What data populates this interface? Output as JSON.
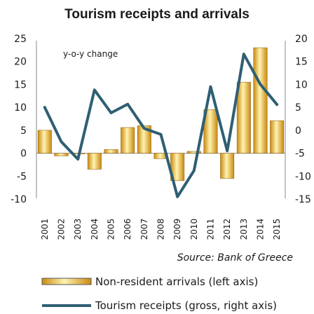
{
  "chart_data": {
    "type": "bar",
    "title": "Tourism receipts and arrivals",
    "annotation": "y-o-y change",
    "source": "Source: Bank of Greece",
    "categories": [
      "2001",
      "2002",
      "2003",
      "2004",
      "2005",
      "2006",
      "2007",
      "2008",
      "2009",
      "2010",
      "2011",
      "2012",
      "2013",
      "2014",
      "2015"
    ],
    "left_axis": {
      "min": -10,
      "max": 25,
      "ticks": [
        "25",
        "20",
        "15",
        "10",
        "5",
        "0",
        "-5",
        "-10"
      ]
    },
    "right_axis": {
      "min": -15,
      "max": 20,
      "ticks": [
        "20",
        "15",
        "10",
        "5",
        "0",
        "-5",
        "-10",
        "-15"
      ]
    },
    "series": [
      {
        "name": "Non-resident arrivals (left axis)",
        "type": "bar",
        "axis": "left",
        "values": [
          5.0,
          -0.6,
          0.0,
          -3.5,
          0.8,
          5.6,
          6.0,
          -1.2,
          -6.0,
          0.4,
          9.5,
          -5.5,
          15.5,
          23.0,
          7.1
        ],
        "color": "#f2b233"
      },
      {
        "name": "Tourism receipts (gross, right axis)",
        "type": "line",
        "axis": "right",
        "values": [
          5.0,
          -2.5,
          -6.3,
          8.8,
          3.8,
          5.7,
          0.4,
          -0.9,
          -14.5,
          -8.8,
          9.5,
          -4.5,
          16.6,
          10.0,
          5.6
        ],
        "color": "#2f5f73"
      }
    ],
    "legend": [
      "Non-resident arrivals (left axis)",
      "Tourism receipts (gross, right axis)"
    ],
    "legend_position": "bottom",
    "grid": false
  }
}
